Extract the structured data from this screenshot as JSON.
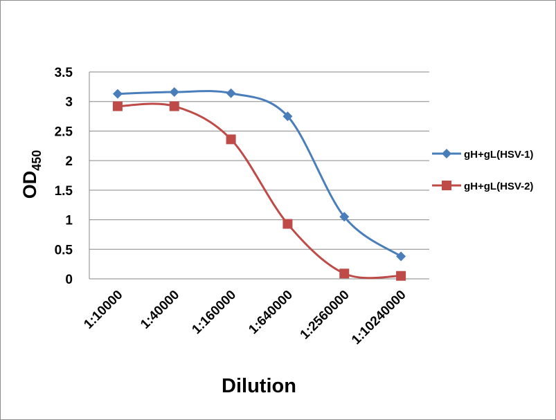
{
  "chart_data": {
    "type": "line",
    "title": "",
    "xlabel": "Dilution",
    "ylabel": "OD",
    "ylabel_subscript": "450",
    "categories": [
      "1:10000",
      "1:40000",
      "1:160000",
      "1:640000",
      "1:2560000",
      "1:10240000"
    ],
    "ylim": [
      0,
      3.5
    ],
    "yticks": [
      "0",
      "0.5",
      "1",
      "1.5",
      "2",
      "2.5",
      "3",
      "3.5"
    ],
    "grid": "horizontal",
    "legend_position": "right",
    "series": [
      {
        "name": "gH+gL(HSV-1)",
        "color": "#4a7ebb",
        "marker": "diamond",
        "values": [
          3.13,
          3.16,
          3.14,
          2.75,
          1.05,
          0.38
        ]
      },
      {
        "name": "gH+gL(HSV-2)",
        "color": "#be4b48",
        "marker": "square",
        "values": [
          2.92,
          2.92,
          2.36,
          0.93,
          0.09,
          0.05
        ]
      }
    ]
  }
}
